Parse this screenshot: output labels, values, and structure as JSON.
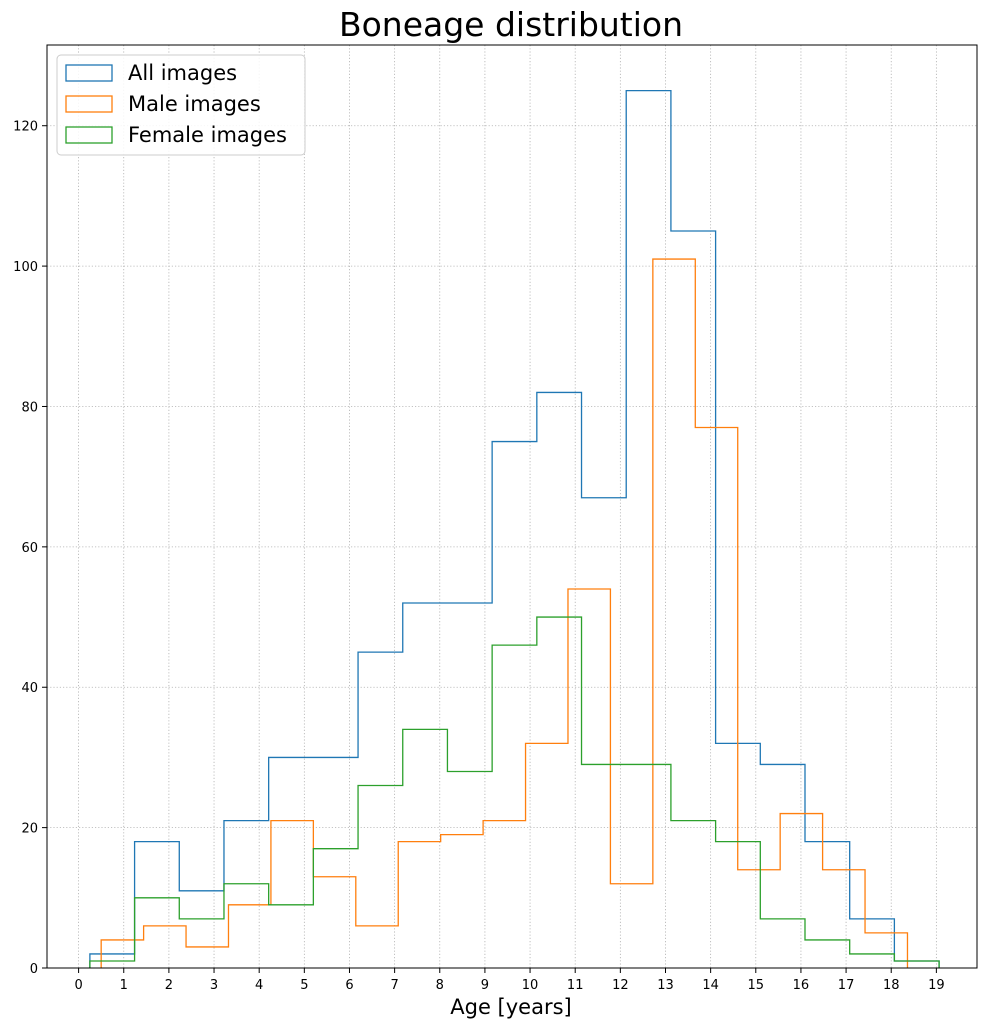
{
  "chart_data": {
    "type": "step-histogram",
    "title": "Boneage distribution",
    "xlabel": "Age [years]",
    "ylabel": "",
    "xlim": [
      -0.7,
      19.9
    ],
    "ylim": [
      0,
      131.5
    ],
    "xticks": [
      0,
      1,
      2,
      3,
      4,
      5,
      6,
      7,
      8,
      9,
      10,
      11,
      12,
      13,
      14,
      15,
      16,
      17,
      18,
      19
    ],
    "xtick_labels": [
      "0",
      "1",
      "2",
      "3",
      "4",
      "5",
      "6",
      "7",
      "8",
      "9",
      "10",
      "11",
      "12",
      "13",
      "14",
      "15",
      "16",
      "17",
      "18",
      "19"
    ],
    "yticks": [
      0,
      20,
      40,
      60,
      80,
      100,
      120
    ],
    "ytick_labels": [
      "0",
      "20",
      "40",
      "60",
      "80",
      "100",
      "120"
    ],
    "grid": true,
    "legend_position": "upper-left",
    "series": [
      {
        "name": "All images",
        "color": "#1f77b4",
        "bin_edges": [
          0.25,
          1.24,
          2.23,
          3.22,
          4.21,
          5.2,
          6.19,
          7.18,
          8.17,
          9.16,
          10.15,
          11.14,
          12.13,
          13.12,
          14.11,
          15.1,
          16.09,
          17.08,
          18.07,
          19.06
        ],
        "counts": [
          2,
          18,
          11,
          21,
          30,
          30,
          45,
          52,
          52,
          75,
          82,
          67,
          125,
          105,
          32,
          29,
          18,
          7,
          1
        ]
      },
      {
        "name": "Male images",
        "color": "#ff7f0e",
        "bin_edges": [
          0.5,
          1.44,
          2.38,
          3.32,
          4.26,
          5.2,
          6.14,
          7.08,
          8.02,
          8.96,
          9.9,
          10.84,
          11.78,
          12.72,
          13.66,
          14.6,
          15.54,
          16.48,
          17.42,
          18.36
        ],
        "counts": [
          4,
          6,
          3,
          9,
          21,
          13,
          6,
          18,
          19,
          21,
          32,
          54,
          12,
          101,
          77,
          14,
          22,
          14,
          5
        ]
      },
      {
        "name": "Female images",
        "color": "#2ca02c",
        "bin_edges": [
          0.25,
          1.24,
          2.23,
          3.22,
          4.21,
          5.2,
          6.19,
          7.18,
          8.17,
          9.16,
          10.15,
          11.14,
          12.13,
          13.12,
          14.11,
          15.1,
          16.09,
          17.08,
          18.07,
          19.06
        ],
        "counts": [
          1,
          10,
          7,
          12,
          9,
          17,
          26,
          34,
          28,
          46,
          50,
          29,
          29,
          21,
          18,
          7,
          4,
          2,
          1
        ]
      }
    ]
  }
}
